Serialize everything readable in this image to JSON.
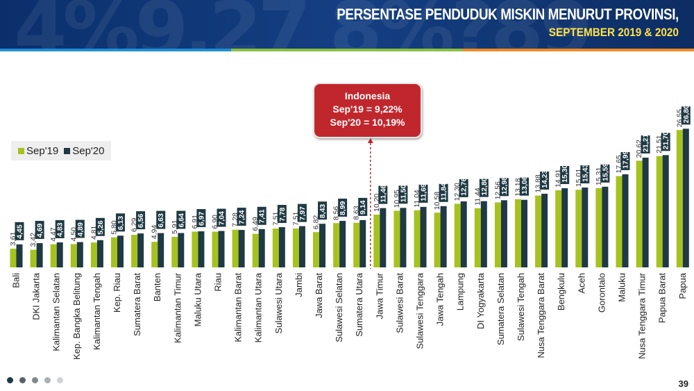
{
  "header": {
    "title_line1": "PERSENTASE PENDUDUK MISKIN MENURUT PROVINSI,",
    "title_line2": "SEPTEMBER 2019 & 2020",
    "decor_text": "4%9.27 8%?89"
  },
  "colors": {
    "header_bg": "#0b2f6b",
    "title_line2": "#ffe14a",
    "stripe_blue": "#1f8fd6",
    "stripe_green": "#8cbf3f",
    "stripe_orange": "#f08a24",
    "sep19": "#a6c21f",
    "sep20": "#1f3a44",
    "callout_bg": "#c0272d",
    "reference_line": "#c0272d"
  },
  "legend": {
    "items": [
      {
        "label": "Sep'19",
        "color": "#a6c21f"
      },
      {
        "label": "Sep'20",
        "color": "#1f3a44"
      }
    ]
  },
  "callout": {
    "line1": "Indonesia",
    "line2": "Sep'19 = 9,22%",
    "line3": "Sep'20 = 10,19%"
  },
  "chart_data": {
    "type": "bar",
    "title": "PERSENTASE PENDUDUK MISKIN MENURUT PROVINSI, SEPTEMBER 2019 & 2020",
    "xlabel": "",
    "ylabel": "",
    "ylim": [
      0,
      28
    ],
    "grid": false,
    "legend_position": "left",
    "categories": [
      "Bali",
      "DKI Jakarta",
      "Kalimantan Selatan",
      "Kep. Bangka Belitung",
      "Kalimantan Tengah",
      "Kep. Riau",
      "Sumatera Barat",
      "Banten",
      "Kalimantan Timur",
      "Maluku Utara",
      "Riau",
      "Kalimantan Barat",
      "Kalimantan Utara",
      "Sulawesi Utara",
      "Jambi",
      "Jawa Barat",
      "Sulawesi Selatan",
      "Sumatera Utara",
      "Jawa Timur",
      "Sulawesi Barat",
      "Sulawesi Tenggara",
      "Jawa Tengah",
      "Lampung",
      "DI Yogyakarta",
      "Sumatera Selatan",
      "Sulawesi Tengah",
      "Nusa Tenggara Barat",
      "Bengkulu",
      "Aceh",
      "Gorontalo",
      "Maluku",
      "Nusa Tenggara Timur",
      "Papua Barat",
      "Papua"
    ],
    "series": [
      {
        "name": "Sep'19",
        "values": [
          3.61,
          3.42,
          4.47,
          4.5,
          4.81,
          5.8,
          6.29,
          4.94,
          5.91,
          6.91,
          6.9,
          7.28,
          6.49,
          7.51,
          7.51,
          6.82,
          8.56,
          8.63,
          10.2,
          10.95,
          11.04,
          10.58,
          12.3,
          11.44,
          12.56,
          13.18,
          13.88,
          14.91,
          15.01,
          15.31,
          17.65,
          20.62,
          21.51,
          26.55
        ],
        "labels": [
          "3,61",
          "3,42",
          "4,47",
          "4,50",
          "4,81",
          "5,80",
          "6,29",
          "4,94",
          "5,91",
          "6,91",
          "6,90",
          "7,28",
          "6,49",
          "7,51",
          "7,51",
          "6,82",
          "8,56",
          "8,63",
          "10,20",
          "10,95",
          "11,04",
          "10,58",
          "12,30",
          "11,44",
          "12,56",
          "13,18",
          "13,88",
          "14,91",
          "15,01",
          "15,31",
          "17,65",
          "20,62",
          "21,51",
          "26,55"
        ]
      },
      {
        "name": "Sep'20",
        "values": [
          4.45,
          4.69,
          4.83,
          4.89,
          5.26,
          6.13,
          6.56,
          6.63,
          6.64,
          6.97,
          7.04,
          7.24,
          7.41,
          7.78,
          7.97,
          8.43,
          8.99,
          9.14,
          11.46,
          11.5,
          11.69,
          11.84,
          12.76,
          12.8,
          12.98,
          13.06,
          14.23,
          15.3,
          15.43,
          15.59,
          17.99,
          21.21,
          21.7,
          26.8
        ],
        "labels": [
          "4,45",
          "4,69",
          "4,83",
          "4,89",
          "5,26",
          "6,13",
          "6,56",
          "6,63",
          "6,64",
          "6,97",
          "7,04",
          "7,24",
          "7,41",
          "7,78",
          "7,97",
          "8,43",
          "8,99",
          "9,14",
          "11,46",
          "11,50",
          "11,69",
          "11,84",
          "12,76",
          "12,80",
          "12,98",
          "13,06",
          "14,23",
          "15,30",
          "15,43",
          "15,59",
          "17,99",
          "21,21",
          "21,70",
          "26,80"
        ]
      }
    ],
    "reference_line": {
      "between_categories": [
        "Sumatera Utara",
        "Jawa Timur"
      ],
      "style": "dashed"
    }
  },
  "footer": {
    "page_number": "39",
    "dots": [
      "#1f3a44",
      "#55636b",
      "#7f8a90",
      "#a7b0b4",
      "#cdd3d6"
    ]
  }
}
